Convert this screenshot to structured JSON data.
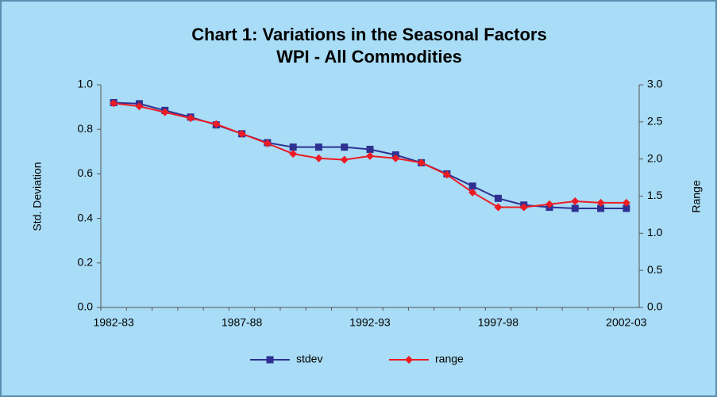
{
  "chart_data": {
    "type": "line",
    "title": "Chart 1: Variations in the Seasonal Factors",
    "subtitle": "WPI - All Commodities",
    "y_label": "Std. Deviation",
    "y2_label": "Range",
    "categories": [
      "1982-83",
      null,
      null,
      null,
      null,
      "1987-88",
      null,
      null,
      null,
      null,
      "1992-93",
      null,
      null,
      null,
      null,
      "1997-98",
      null,
      null,
      null,
      null,
      "2002-03"
    ],
    "series": [
      {
        "name": "stdev",
        "color": "#2e3192",
        "marker": "square",
        "values": [
          0.92,
          0.915,
          0.885,
          0.855,
          0.82,
          0.78,
          0.74,
          0.72,
          0.72,
          0.72,
          0.71,
          0.685,
          0.65,
          0.6,
          0.545,
          0.49,
          0.46,
          0.45,
          0.445,
          0.445,
          0.445
        ]
      },
      {
        "name": "range",
        "color": "#ed1c24",
        "marker": "diamond",
        "axis": "y2",
        "values": [
          2.75,
          2.71,
          2.63,
          2.55,
          2.47,
          2.34,
          2.21,
          2.07,
          2.01,
          1.99,
          2.04,
          2.01,
          1.95,
          1.79,
          1.55,
          1.35,
          1.35,
          1.39,
          1.43,
          1.41,
          1.41
        ]
      }
    ],
    "ylim": [
      0,
      1
    ],
    "yticks": [
      {
        "value": 0,
        "label": "0.0"
      },
      0.2,
      0.4,
      0.6,
      0.8,
      {
        "value": 1,
        "label": "1.0"
      }
    ],
    "y2lim": [
      0,
      3
    ],
    "y2ticks": [
      {
        "value": 0,
        "label": "0.0"
      },
      0.5,
      {
        "value": 1,
        "label": "1.0"
      },
      1.5,
      {
        "value": 2,
        "label": "2.0"
      },
      2.5,
      {
        "value": 3,
        "label": "3.0"
      }
    ],
    "legend": "bottom"
  }
}
